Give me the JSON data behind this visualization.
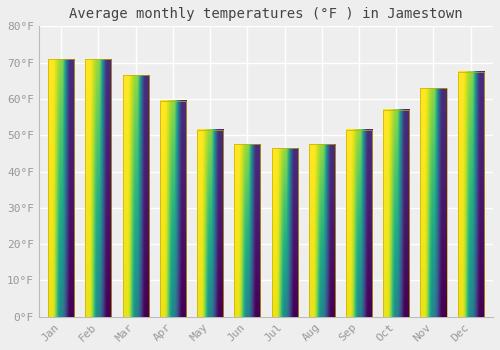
{
  "title": "Average monthly temperatures (°F ) in Jamestown",
  "months": [
    "Jan",
    "Feb",
    "Mar",
    "Apr",
    "May",
    "Jun",
    "Jul",
    "Aug",
    "Sep",
    "Oct",
    "Nov",
    "Dec"
  ],
  "values": [
    71,
    71,
    66.5,
    59.5,
    51.5,
    47.5,
    46.5,
    47.5,
    51.5,
    57,
    63,
    67.5
  ],
  "bar_color_top": "#FDD835",
  "bar_color_bottom": "#F57F17",
  "ylim": [
    0,
    80
  ],
  "yticks": [
    0,
    10,
    20,
    30,
    40,
    50,
    60,
    70,
    80
  ],
  "ytick_labels": [
    "0°F",
    "10°F",
    "20°F",
    "30°F",
    "40°F",
    "50°F",
    "60°F",
    "70°F",
    "80°F"
  ],
  "background_color": "#eeeeee",
  "grid_color": "#ffffff",
  "title_fontsize": 10,
  "tick_fontsize": 8,
  "tick_color": "#999999",
  "bar_width": 0.7
}
